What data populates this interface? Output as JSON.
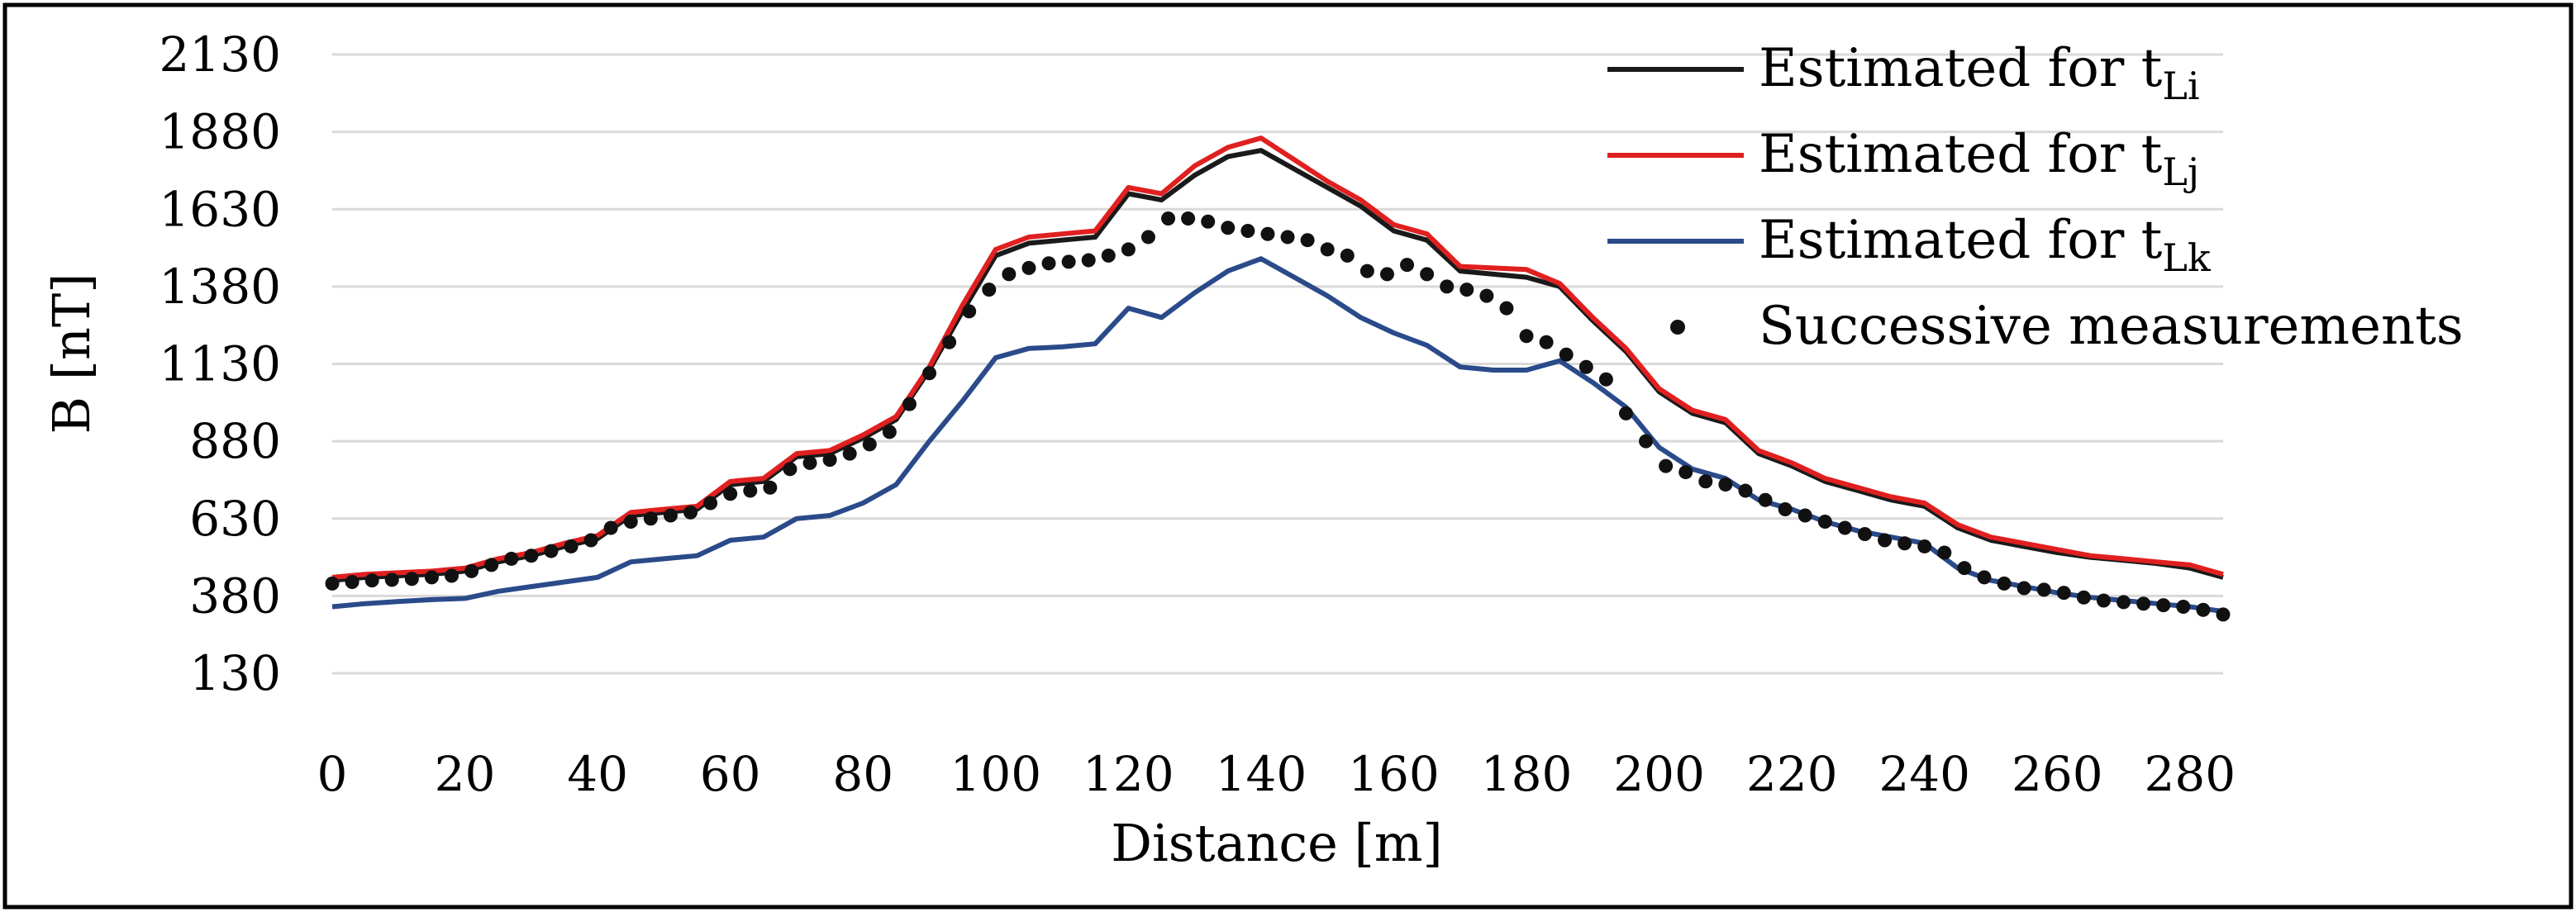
{
  "chart_data": {
    "type": "line",
    "title": "",
    "xlabel": "Distance [m]",
    "ylabel": "B [nT]",
    "xlim": [
      0,
      285
    ],
    "ylim": [
      130,
      2130
    ],
    "xticks": [
      "0",
      "20",
      "40",
      "60",
      "80",
      "100",
      "120",
      "140",
      "160",
      "180",
      "200",
      "220",
      "240",
      "260",
      "280"
    ],
    "yticks": [
      "2130",
      "1880",
      "1630",
      "1380",
      "1130",
      "880",
      "630",
      "380",
      "130"
    ],
    "grid": "horizontal",
    "legend_position": "top-right",
    "series": [
      {
        "name": "Estimated for t",
        "sub": "Li",
        "color": "#1a1a1a",
        "style": "line",
        "points": [
          [
            0,
            430
          ],
          [
            5,
            440
          ],
          [
            10,
            445
          ],
          [
            15,
            450
          ],
          [
            20,
            460
          ],
          [
            25,
            490
          ],
          [
            30,
            510
          ],
          [
            35,
            540
          ],
          [
            40,
            565
          ],
          [
            45,
            640
          ],
          [
            50,
            650
          ],
          [
            55,
            660
          ],
          [
            60,
            740
          ],
          [
            65,
            750
          ],
          [
            70,
            830
          ],
          [
            75,
            840
          ],
          [
            80,
            890
          ],
          [
            85,
            950
          ],
          [
            90,
            1110
          ],
          [
            95,
            1300
          ],
          [
            100,
            1480
          ],
          [
            105,
            1520
          ],
          [
            110,
            1530
          ],
          [
            115,
            1540
          ],
          [
            120,
            1680
          ],
          [
            125,
            1660
          ],
          [
            130,
            1740
          ],
          [
            135,
            1800
          ],
          [
            140,
            1820
          ],
          [
            145,
            1760
          ],
          [
            150,
            1700
          ],
          [
            155,
            1640
          ],
          [
            160,
            1560
          ],
          [
            165,
            1530
          ],
          [
            170,
            1430
          ],
          [
            175,
            1420
          ],
          [
            180,
            1410
          ],
          [
            185,
            1380
          ],
          [
            190,
            1270
          ],
          [
            195,
            1170
          ],
          [
            200,
            1040
          ],
          [
            205,
            970
          ],
          [
            210,
            940
          ],
          [
            215,
            840
          ],
          [
            220,
            800
          ],
          [
            225,
            750
          ],
          [
            230,
            720
          ],
          [
            235,
            690
          ],
          [
            240,
            670
          ],
          [
            245,
            600
          ],
          [
            250,
            560
          ],
          [
            255,
            540
          ],
          [
            260,
            520
          ],
          [
            265,
            505
          ],
          [
            270,
            495
          ],
          [
            275,
            485
          ],
          [
            280,
            470
          ],
          [
            285,
            440
          ]
        ]
      },
      {
        "name": "Estimated for t",
        "sub": "Lj",
        "color": "#e02020",
        "style": "line",
        "points": [
          [
            0,
            440
          ],
          [
            5,
            450
          ],
          [
            10,
            455
          ],
          [
            15,
            460
          ],
          [
            20,
            470
          ],
          [
            25,
            500
          ],
          [
            30,
            520
          ],
          [
            35,
            550
          ],
          [
            40,
            575
          ],
          [
            45,
            650
          ],
          [
            50,
            660
          ],
          [
            55,
            670
          ],
          [
            60,
            750
          ],
          [
            65,
            760
          ],
          [
            70,
            840
          ],
          [
            75,
            850
          ],
          [
            80,
            900
          ],
          [
            85,
            960
          ],
          [
            90,
            1120
          ],
          [
            95,
            1320
          ],
          [
            100,
            1500
          ],
          [
            105,
            1540
          ],
          [
            110,
            1550
          ],
          [
            115,
            1560
          ],
          [
            120,
            1700
          ],
          [
            125,
            1680
          ],
          [
            130,
            1770
          ],
          [
            135,
            1830
          ],
          [
            140,
            1860
          ],
          [
            145,
            1790
          ],
          [
            150,
            1720
          ],
          [
            155,
            1660
          ],
          [
            160,
            1580
          ],
          [
            165,
            1550
          ],
          [
            170,
            1445
          ],
          [
            175,
            1440
          ],
          [
            180,
            1435
          ],
          [
            185,
            1390
          ],
          [
            190,
            1280
          ],
          [
            195,
            1180
          ],
          [
            200,
            1050
          ],
          [
            205,
            980
          ],
          [
            210,
            950
          ],
          [
            215,
            850
          ],
          [
            220,
            810
          ],
          [
            225,
            760
          ],
          [
            230,
            730
          ],
          [
            235,
            700
          ],
          [
            240,
            680
          ],
          [
            245,
            610
          ],
          [
            250,
            570
          ],
          [
            255,
            550
          ],
          [
            260,
            530
          ],
          [
            265,
            510
          ],
          [
            270,
            500
          ],
          [
            275,
            490
          ],
          [
            280,
            480
          ],
          [
            285,
            450
          ]
        ]
      },
      {
        "name": "Estimated for t",
        "sub": "Lk",
        "color": "#2a4a8a",
        "style": "line",
        "points": [
          [
            0,
            345
          ],
          [
            5,
            355
          ],
          [
            10,
            362
          ],
          [
            15,
            368
          ],
          [
            20,
            372
          ],
          [
            25,
            395
          ],
          [
            30,
            410
          ],
          [
            35,
            425
          ],
          [
            40,
            440
          ],
          [
            45,
            490
          ],
          [
            50,
            500
          ],
          [
            55,
            510
          ],
          [
            60,
            560
          ],
          [
            65,
            570
          ],
          [
            70,
            630
          ],
          [
            75,
            640
          ],
          [
            80,
            680
          ],
          [
            85,
            740
          ],
          [
            90,
            880
          ],
          [
            95,
            1010
          ],
          [
            100,
            1150
          ],
          [
            105,
            1180
          ],
          [
            110,
            1185
          ],
          [
            115,
            1195
          ],
          [
            120,
            1310
          ],
          [
            125,
            1280
          ],
          [
            130,
            1360
          ],
          [
            135,
            1430
          ],
          [
            140,
            1470
          ],
          [
            145,
            1410
          ],
          [
            150,
            1350
          ],
          [
            155,
            1280
          ],
          [
            160,
            1230
          ],
          [
            165,
            1190
          ],
          [
            170,
            1120
          ],
          [
            175,
            1110
          ],
          [
            180,
            1110
          ],
          [
            185,
            1140
          ],
          [
            190,
            1070
          ],
          [
            195,
            990
          ],
          [
            200,
            860
          ],
          [
            205,
            790
          ],
          [
            210,
            760
          ],
          [
            215,
            690
          ],
          [
            220,
            660
          ],
          [
            225,
            620
          ],
          [
            230,
            590
          ],
          [
            235,
            570
          ],
          [
            240,
            550
          ],
          [
            245,
            470
          ],
          [
            250,
            430
          ],
          [
            255,
            410
          ],
          [
            260,
            390
          ],
          [
            265,
            375
          ],
          [
            270,
            365
          ],
          [
            275,
            355
          ],
          [
            280,
            345
          ],
          [
            285,
            330
          ]
        ]
      },
      {
        "name": "Successive measurements",
        "sub": "",
        "color": "#111111",
        "style": "dots",
        "points": [
          [
            0,
            420
          ],
          [
            3,
            425
          ],
          [
            6,
            430
          ],
          [
            9,
            432
          ],
          [
            12,
            435
          ],
          [
            15,
            440
          ],
          [
            18,
            445
          ],
          [
            21,
            460
          ],
          [
            24,
            480
          ],
          [
            27,
            500
          ],
          [
            30,
            510
          ],
          [
            33,
            525
          ],
          [
            36,
            540
          ],
          [
            39,
            560
          ],
          [
            42,
            600
          ],
          [
            45,
            620
          ],
          [
            48,
            630
          ],
          [
            51,
            640
          ],
          [
            54,
            650
          ],
          [
            57,
            680
          ],
          [
            60,
            710
          ],
          [
            63,
            720
          ],
          [
            66,
            730
          ],
          [
            69,
            790
          ],
          [
            72,
            810
          ],
          [
            75,
            820
          ],
          [
            78,
            840
          ],
          [
            81,
            870
          ],
          [
            84,
            910
          ],
          [
            87,
            1000
          ],
          [
            90,
            1100
          ],
          [
            93,
            1200
          ],
          [
            96,
            1300
          ],
          [
            99,
            1370
          ],
          [
            102,
            1420
          ],
          [
            105,
            1440
          ],
          [
            108,
            1455
          ],
          [
            111,
            1460
          ],
          [
            114,
            1465
          ],
          [
            117,
            1480
          ],
          [
            120,
            1500
          ],
          [
            123,
            1540
          ],
          [
            126,
            1600
          ],
          [
            129,
            1600
          ],
          [
            132,
            1590
          ],
          [
            135,
            1570
          ],
          [
            138,
            1560
          ],
          [
            141,
            1550
          ],
          [
            144,
            1540
          ],
          [
            147,
            1530
          ],
          [
            150,
            1500
          ],
          [
            153,
            1480
          ],
          [
            156,
            1430
          ],
          [
            159,
            1420
          ],
          [
            162,
            1450
          ],
          [
            165,
            1420
          ],
          [
            168,
            1380
          ],
          [
            171,
            1370
          ],
          [
            174,
            1350
          ],
          [
            177,
            1310
          ],
          [
            180,
            1220
          ],
          [
            183,
            1200
          ],
          [
            186,
            1160
          ],
          [
            189,
            1120
          ],
          [
            192,
            1080
          ],
          [
            195,
            970
          ],
          [
            198,
            880
          ],
          [
            201,
            800
          ],
          [
            204,
            780
          ],
          [
            207,
            750
          ],
          [
            210,
            740
          ],
          [
            213,
            720
          ],
          [
            216,
            690
          ],
          [
            219,
            660
          ],
          [
            222,
            640
          ],
          [
            225,
            620
          ],
          [
            228,
            600
          ],
          [
            231,
            580
          ],
          [
            234,
            560
          ],
          [
            237,
            550
          ],
          [
            240,
            540
          ],
          [
            243,
            520
          ],
          [
            246,
            470
          ],
          [
            249,
            440
          ],
          [
            252,
            420
          ],
          [
            255,
            405
          ],
          [
            258,
            400
          ],
          [
            261,
            390
          ],
          [
            264,
            375
          ],
          [
            267,
            365
          ],
          [
            270,
            360
          ],
          [
            273,
            355
          ],
          [
            276,
            350
          ],
          [
            279,
            345
          ],
          [
            282,
            335
          ],
          [
            285,
            320
          ]
        ]
      }
    ]
  }
}
